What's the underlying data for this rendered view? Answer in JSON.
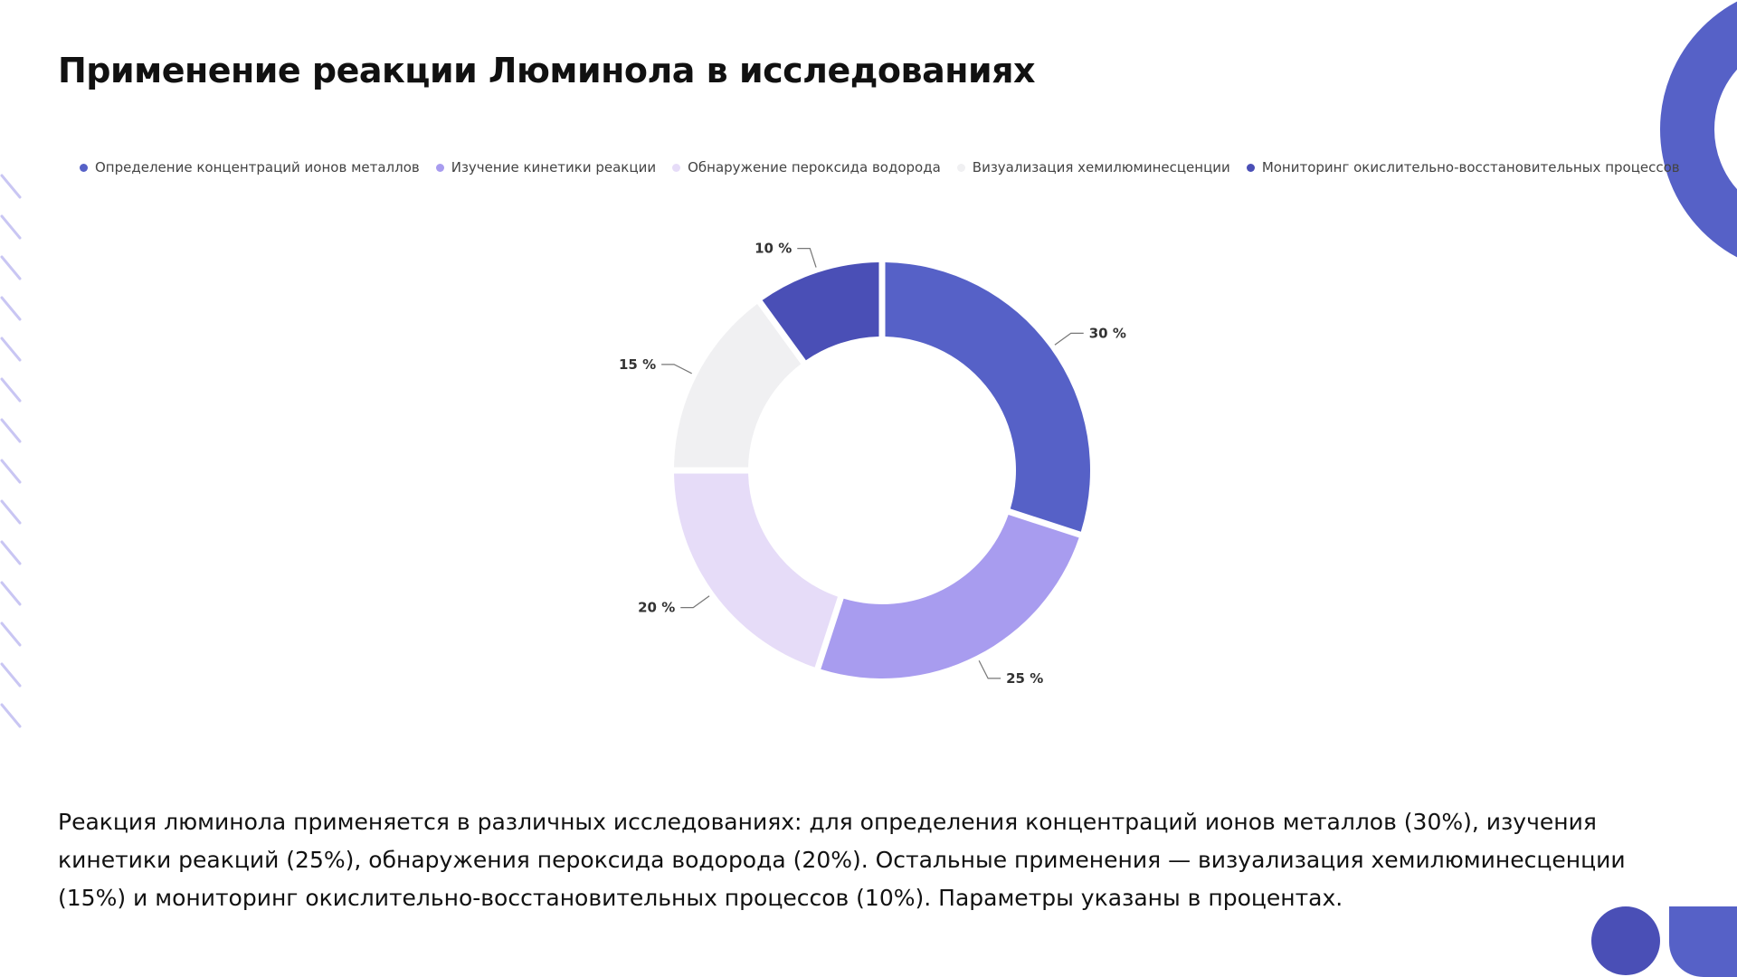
{
  "slide": {
    "title": "Применение реакции Люминола в исследованиях",
    "description": "Реакция люминола применяется в различных исследованиях: для определения концентраций ионов металлов (30%), изучения кинетики реакций (25%), обнаружения пероксида водорода (20%). Остальные применения — визуализация хемилюминесценции (15%) и мониторинг окислительно-восстановительных процессов (10%). Параметры указаны в процентах."
  },
  "chart_data": {
    "type": "pie",
    "donut": true,
    "legend_position": "top",
    "slices": [
      {
        "label": "Определение концентраций ионов металлов",
        "value": 30,
        "data_label": "30 %",
        "color": "#5661c7"
      },
      {
        "label": "Изучение кинетики реакции",
        "value": 25,
        "data_label": "25 %",
        "color": "#a89cef"
      },
      {
        "label": "Обнаружение пероксида водорода",
        "value": 20,
        "data_label": "20 %",
        "color": "#e6dcf8"
      },
      {
        "label": "Визуализация хемилюминесценции",
        "value": 15,
        "data_label": "15 %",
        "color": "#f0f0f2"
      },
      {
        "label": "Мониторинг окислительно-восстановительных процессов",
        "value": 10,
        "data_label": "10 %",
        "color": "#4a4fb6"
      }
    ]
  },
  "colors": {
    "accent": "#5661c7",
    "hatch": "#c9c6f3"
  }
}
